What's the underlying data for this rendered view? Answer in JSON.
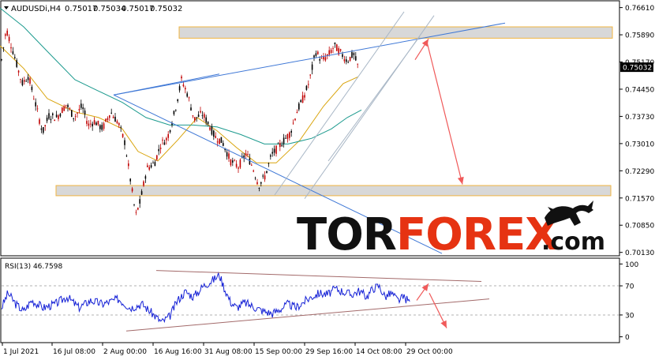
{
  "chart_data": [
    {
      "type": "candlestick",
      "header": {
        "symbol_timeframe": "AUDUSDi,H4",
        "ohlc": [
          "0.75017",
          "0.75034",
          "0.75017",
          "0.75032"
        ]
      },
      "current_price_label": "0.75032",
      "y_ticks": [
        "0.76610",
        "0.75890",
        "0.75170",
        "0.74450",
        "0.73730",
        "0.73010",
        "0.72290",
        "0.71570",
        "0.70850",
        "0.70130"
      ],
      "ylim": [
        0.7004,
        0.7679
      ],
      "x_ticks": [
        "1 Jul 2021",
        "16 Jul 08:00",
        "2 Aug 00:00",
        "16 Aug 16:00",
        "31 Aug 08:00",
        "15 Sep 00:00",
        "29 Sep 16:00",
        "14 Oct 08:00",
        "29 Oct 00:00"
      ],
      "grid": false,
      "price_path_points": [
        [
          0,
          0.7495
        ],
        [
          8,
          0.7605
        ],
        [
          18,
          0.7535
        ],
        [
          28,
          0.746
        ],
        [
          36,
          0.748
        ],
        [
          46,
          0.7398
        ],
        [
          54,
          0.733
        ],
        [
          62,
          0.7375
        ],
        [
          72,
          0.737
        ],
        [
          84,
          0.7405
        ],
        [
          94,
          0.737
        ],
        [
          104,
          0.74
        ],
        [
          112,
          0.735
        ],
        [
          120,
          0.736
        ],
        [
          130,
          0.734
        ],
        [
          140,
          0.7385
        ],
        [
          150,
          0.7355
        ],
        [
          158,
          0.7305
        ],
        [
          166,
          0.7195
        ],
        [
          172,
          0.711
        ],
        [
          178,
          0.715
        ],
        [
          186,
          0.7235
        ],
        [
          196,
          0.725
        ],
        [
          204,
          0.73
        ],
        [
          212,
          0.7315
        ],
        [
          222,
          0.739
        ],
        [
          230,
          0.747
        ],
        [
          238,
          0.743
        ],
        [
          246,
          0.7365
        ],
        [
          256,
          0.738
        ],
        [
          264,
          0.7355
        ],
        [
          272,
          0.732
        ],
        [
          282,
          0.7305
        ],
        [
          292,
          0.7255
        ],
        [
          302,
          0.724
        ],
        [
          312,
          0.7275
        ],
        [
          320,
          0.724
        ],
        [
          328,
          0.719
        ],
        [
          336,
          0.7215
        ],
        [
          344,
          0.727
        ],
        [
          352,
          0.729
        ],
        [
          360,
          0.731
        ],
        [
          368,
          0.733
        ],
        [
          376,
          0.7385
        ],
        [
          384,
          0.742
        ],
        [
          392,
          0.7465
        ],
        [
          400,
          0.7545
        ],
        [
          408,
          0.752
        ],
        [
          416,
          0.7535
        ],
        [
          424,
          0.756
        ],
        [
          432,
          0.754
        ],
        [
          440,
          0.752
        ],
        [
          448,
          0.7538
        ],
        [
          454,
          0.7503
        ]
      ],
      "moving_averages": [
        {
          "color": "#d9a40c",
          "points": [
            [
              0,
              0.756
            ],
            [
              30,
              0.75
            ],
            [
              60,
              0.742
            ],
            [
              95,
              0.7385
            ],
            [
              125,
              0.737
            ],
            [
              155,
              0.734
            ],
            [
              175,
              0.728
            ],
            [
              200,
              0.7255
            ],
            [
              225,
              0.731
            ],
            [
              250,
              0.737
            ],
            [
              275,
              0.7335
            ],
            [
              300,
              0.729
            ],
            [
              325,
              0.725
            ],
            [
              350,
              0.725
            ],
            [
              380,
              0.731
            ],
            [
              410,
              0.74
            ],
            [
              435,
              0.746
            ],
            [
              454,
              0.7478
            ]
          ]
        },
        {
          "color": "#1c9a8e",
          "points": [
            [
              0,
              0.766
            ],
            [
              30,
              0.761
            ],
            [
              60,
              0.7545
            ],
            [
              95,
              0.747
            ],
            [
              125,
              0.744
            ],
            [
              155,
              0.741
            ],
            [
              185,
              0.737
            ],
            [
              215,
              0.735
            ],
            [
              245,
              0.735
            ],
            [
              275,
              0.7345
            ],
            [
              305,
              0.7325
            ],
            [
              335,
              0.73
            ],
            [
              365,
              0.73
            ],
            [
              395,
              0.7315
            ],
            [
              420,
              0.734
            ],
            [
              440,
              0.737
            ],
            [
              458,
              0.739
            ]
          ]
        }
      ],
      "zones": [
        {
          "y_top": 0.761,
          "y_bottom": 0.758
        },
        {
          "y_top": 0.719,
          "y_bottom": 0.7163
        }
      ],
      "trend_lines": [
        {
          "color": "#3f78d6",
          "from": [
            144,
            0.743
          ],
          "to": [
            640,
            0.762
          ]
        },
        {
          "color": "#3f78d6",
          "from": [
            144,
            0.743
          ],
          "to": [
            560,
            0.701
          ]
        },
        {
          "color": "#3f78d6",
          "from": [
            144,
            0.743
          ],
          "to": [
            278,
            0.7485
          ]
        },
        {
          "color": "#a9b7c6",
          "from": [
            348,
            0.7165
          ],
          "to": [
            512,
            0.765
          ]
        },
        {
          "color": "#a9b7c6",
          "from": [
            386,
            0.7155
          ],
          "to": [
            550,
            0.764
          ]
        },
        {
          "color": "#a9b7c6",
          "from": [
            416,
            0.7255
          ],
          "to": [
            532,
            0.7585
          ]
        }
      ],
      "forecast_arrows": [
        {
          "color": "#f05a5a",
          "from": [
            526,
            0.7523
          ],
          "to": [
            543,
            0.7578
          ]
        },
        {
          "color": "#f05a5a",
          "from": [
            541,
            0.757
          ],
          "to": [
            586,
            0.7193
          ]
        }
      ]
    },
    {
      "type": "line",
      "title": "RSI(13) 46.7598",
      "y_ticks": [
        "100",
        "70",
        "30",
        "0"
      ],
      "ylim": [
        -8,
        108
      ],
      "levels": [
        70,
        30
      ],
      "series": [
        {
          "color": "#1420d6",
          "points": [
            [
              0,
              35
            ],
            [
              10,
              60
            ],
            [
              20,
              45
            ],
            [
              30,
              35
            ],
            [
              40,
              50
            ],
            [
              55,
              40
            ],
            [
              70,
              45
            ],
            [
              85,
              55
            ],
            [
              100,
              40
            ],
            [
              115,
              50
            ],
            [
              130,
              45
            ],
            [
              150,
              52
            ],
            [
              165,
              40
            ],
            [
              180,
              45
            ],
            [
              195,
              30
            ],
            [
              205,
              20
            ],
            [
              215,
              28
            ],
            [
              225,
              50
            ],
            [
              235,
              62
            ],
            [
              245,
              55
            ],
            [
              258,
              70
            ],
            [
              270,
              78
            ],
            [
              278,
              85
            ],
            [
              285,
              65
            ],
            [
              292,
              48
            ],
            [
              300,
              40
            ],
            [
              310,
              47
            ],
            [
              320,
              42
            ],
            [
              332,
              36
            ],
            [
              345,
              32
            ],
            [
              355,
              38
            ],
            [
              365,
              45
            ],
            [
              375,
              40
            ],
            [
              385,
              48
            ],
            [
              395,
              55
            ],
            [
              405,
              60
            ],
            [
              415,
              58
            ],
            [
              425,
              66
            ],
            [
              435,
              62
            ],
            [
              445,
              58
            ],
            [
              455,
              63
            ],
            [
              465,
              55
            ],
            [
              472,
              66
            ],
            [
              480,
              70
            ],
            [
              488,
              55
            ],
            [
              496,
              60
            ],
            [
              504,
              50
            ],
            [
              512,
              54
            ],
            [
              520,
              47
            ]
          ]
        }
      ],
      "trend_lines": [
        {
          "color": "#a36a6a",
          "from": [
            198,
            91
          ],
          "to": [
            610,
            76
          ]
        },
        {
          "color": "#a36a6a",
          "from": [
            160,
            8
          ],
          "to": [
            620,
            52
          ]
        }
      ],
      "forecast_arrows": [
        {
          "color": "#f05a5a",
          "from": [
            528,
            50
          ],
          "to": [
            543,
            73
          ]
        },
        {
          "color": "#f05a5a",
          "from": [
            544,
            60
          ],
          "to": [
            566,
            12
          ]
        }
      ]
    }
  ],
  "watermark": {
    "text_part1": "TOR",
    "text_part2": "FOREX",
    "text_part3": ".com"
  }
}
